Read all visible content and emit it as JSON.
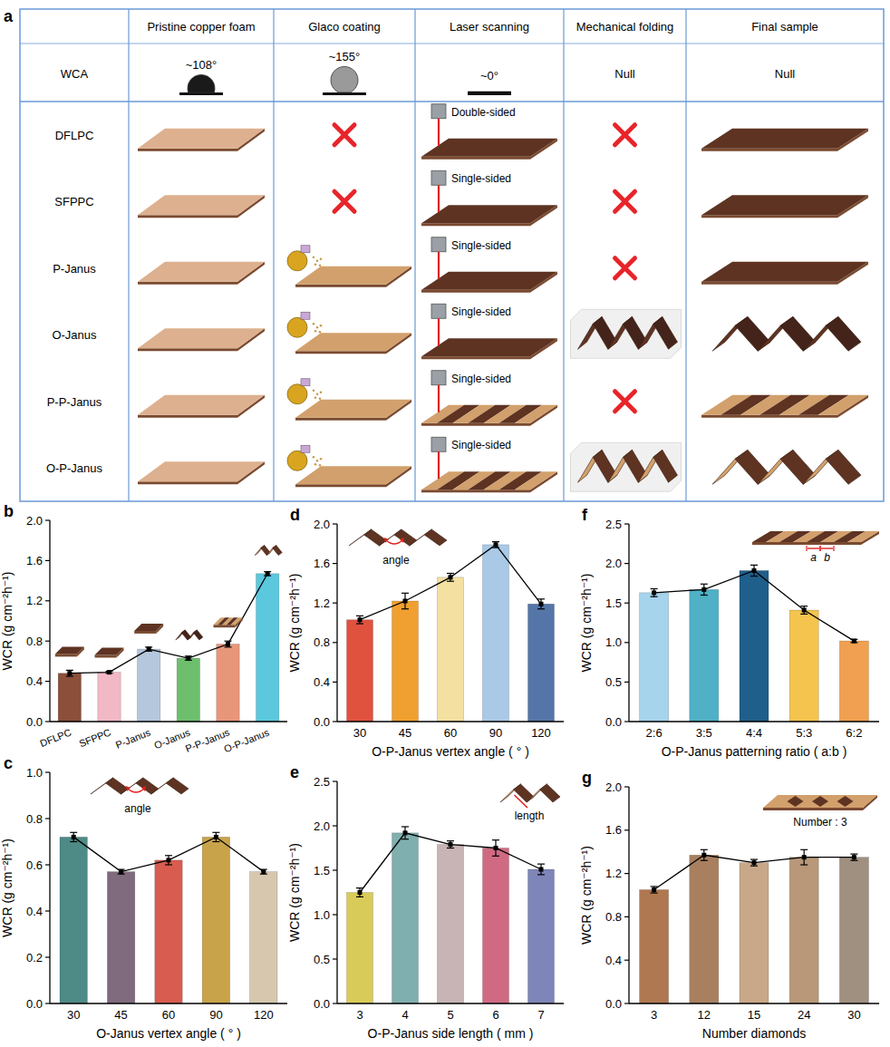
{
  "schematic": {
    "panel": "a",
    "columns": [
      "Pristine copper foam",
      "Glaco coating",
      "Laser scanning",
      "Mechanical folding",
      "Final sample"
    ],
    "wca_label": "WCA",
    "wca": [
      {
        "value": 108,
        "label": "~108°"
      },
      {
        "value": 155,
        "label": "~155°"
      },
      {
        "value": 0,
        "label": "~0°"
      },
      {
        "label": "Null"
      },
      {
        "label": "Null"
      }
    ],
    "rows": [
      {
        "label": "DFLPC",
        "glaco_coating": false,
        "laser_scanning": "Double-sided",
        "patterned": false,
        "mechanical_folding": false
      },
      {
        "label": "SFPPC",
        "glaco_coating": false,
        "laser_scanning": "Single-sided",
        "patterned": false,
        "mechanical_folding": false
      },
      {
        "label": "P-Janus",
        "glaco_coating": true,
        "laser_scanning": "Single-sided",
        "patterned": false,
        "mechanical_folding": false
      },
      {
        "label": "O-Janus",
        "glaco_coating": true,
        "laser_scanning": "Single-sided",
        "patterned": false,
        "mechanical_folding": true
      },
      {
        "label": "P-P-Janus",
        "glaco_coating": true,
        "laser_scanning": "Single-sided",
        "patterned": true,
        "mechanical_folding": false
      },
      {
        "label": "O-P-Janus",
        "glaco_coating": true,
        "laser_scanning": "Single-sided",
        "patterned": true,
        "mechanical_folding": true
      }
    ]
  },
  "chart_data": [
    {
      "panel": "b",
      "type": "bar",
      "categories": [
        "DFLPC",
        "SFPPC",
        "P-Janus",
        "O-Janus",
        "P-P-Janus",
        "O-P-Janus"
      ],
      "values": [
        0.48,
        0.49,
        0.72,
        0.63,
        0.77,
        1.47
      ],
      "errors": [
        0.03,
        0.01,
        0.02,
        0.02,
        0.03,
        0.02
      ],
      "colors": [
        "#8B4F3A",
        "#F2B8C6",
        "#B4C7DC",
        "#6DBE6D",
        "#E8967A",
        "#5BC8DE"
      ],
      "y_label": "WCR (g cm⁻²h⁻¹)",
      "ylim": [
        0,
        2
      ],
      "yticks": [
        {
          "value": 0,
          "label": "0.0"
        },
        0.4,
        0.8,
        1.2,
        1.6,
        {
          "value": 2,
          "label": "2.0"
        }
      ],
      "line_style": "solid",
      "marker": "square"
    },
    {
      "panel": "c",
      "type": "bar",
      "categories": [
        "30",
        "45",
        "60",
        "90",
        "120"
      ],
      "values": [
        0.72,
        0.57,
        0.62,
        0.72,
        0.57
      ],
      "errors": [
        0.02,
        0.01,
        0.02,
        0.02,
        0.01
      ],
      "colors": [
        "#4E8A86",
        "#7F6A7E",
        "#D95C50",
        "#C8A34A",
        "#D6C7AE"
      ],
      "x_label": "O-Janus vertex angle ( ° )",
      "y_label": "WCR (g cm⁻²h⁻¹)",
      "ylim": [
        0,
        1
      ],
      "yticks": [
        {
          "value": 0,
          "label": "0.0"
        },
        0.2,
        0.4,
        0.6,
        0.8,
        {
          "value": 1,
          "label": "1.0"
        }
      ],
      "annotations": [
        "angle"
      ],
      "line_style": "solid",
      "marker": "square"
    },
    {
      "panel": "d",
      "type": "bar",
      "categories": [
        "30",
        "45",
        "60",
        "90",
        "120"
      ],
      "values": [
        1.03,
        1.22,
        1.46,
        1.79,
        1.19
      ],
      "errors": [
        0.04,
        0.08,
        0.04,
        0.03,
        0.05
      ],
      "colors": [
        "#E0523E",
        "#F0A030",
        "#F4E0A0",
        "#A9C9E6",
        "#5575A8"
      ],
      "x_label": "O-P-Janus vertex angle ( ° )",
      "y_label": "WCR (g cm⁻²h⁻¹)",
      "ylim": [
        0,
        2
      ],
      "yticks": [
        {
          "value": 0,
          "label": "0.0"
        },
        0.4,
        0.8,
        1.2,
        1.6,
        {
          "value": 2,
          "label": "2.0"
        }
      ],
      "annotations": [
        "angle"
      ],
      "line_style": "solid",
      "marker": "square"
    },
    {
      "panel": "e",
      "type": "bar",
      "categories": [
        "3",
        "4",
        "5",
        "6",
        "7"
      ],
      "values": [
        1.25,
        1.92,
        1.79,
        1.75,
        1.51
      ],
      "errors": [
        0.05,
        0.07,
        0.04,
        0.09,
        0.06
      ],
      "colors": [
        "#D9CB5A",
        "#7FAFAE",
        "#C8B4B4",
        "#D06A83",
        "#7E85B8"
      ],
      "x_label": "O-P-Janus side length ( mm )",
      "y_label": "WCR (g cm⁻²h⁻¹)",
      "ylim": [
        0,
        2.5
      ],
      "yticks": [
        {
          "value": 0,
          "label": "0.0"
        },
        0.5,
        {
          "value": 1,
          "label": "1.0"
        },
        1.5,
        {
          "value": 2,
          "label": "2.0"
        },
        2.5
      ],
      "annotations": [
        "length"
      ],
      "line_style": "solid",
      "marker": "square"
    },
    {
      "panel": "f",
      "type": "bar",
      "categories": [
        "2:6",
        "3:5",
        "4:4",
        "5:3",
        "6:2"
      ],
      "values": [
        1.63,
        1.67,
        1.91,
        1.41,
        1.02
      ],
      "errors": [
        0.05,
        0.07,
        0.07,
        0.05,
        0.02
      ],
      "colors": [
        "#A6D4EC",
        "#4FB0C6",
        "#1F5F8B",
        "#F5C44E",
        "#F0A050"
      ],
      "x_label": "O-P-Janus patterning ratio ( a:b )",
      "y_label": "WCR (g cm⁻²h⁻¹)",
      "ylim": [
        0,
        2.5
      ],
      "yticks": [
        {
          "value": 0,
          "label": "0.0"
        },
        0.5,
        {
          "value": 1,
          "label": "1.0"
        },
        1.5,
        {
          "value": 2,
          "label": "2.0"
        },
        2.5
      ],
      "annotations": [
        "a",
        "b"
      ],
      "line_style": "solid",
      "marker": "square"
    },
    {
      "panel": "g",
      "type": "bar",
      "categories": [
        "3",
        "12",
        "15",
        "24",
        "30"
      ],
      "values": [
        1.05,
        1.37,
        1.3,
        1.35,
        1.35
      ],
      "errors": [
        0.03,
        0.05,
        0.03,
        0.07,
        0.03
      ],
      "colors": [
        "#B07850",
        "#A88060",
        "#C8A888",
        "#B89878",
        "#A09080"
      ],
      "x_label": "Number diamonds",
      "y_label": "WCR (g cm⁻²h⁻¹)",
      "ylim": [
        0,
        2
      ],
      "yticks": [
        {
          "value": 0,
          "label": "0.0"
        },
        0.4,
        0.8,
        1.2,
        1.6,
        {
          "value": 2,
          "label": "2.0"
        }
      ],
      "annotations": [
        "Number : 3"
      ],
      "line_style": "solid",
      "marker": "square"
    }
  ]
}
